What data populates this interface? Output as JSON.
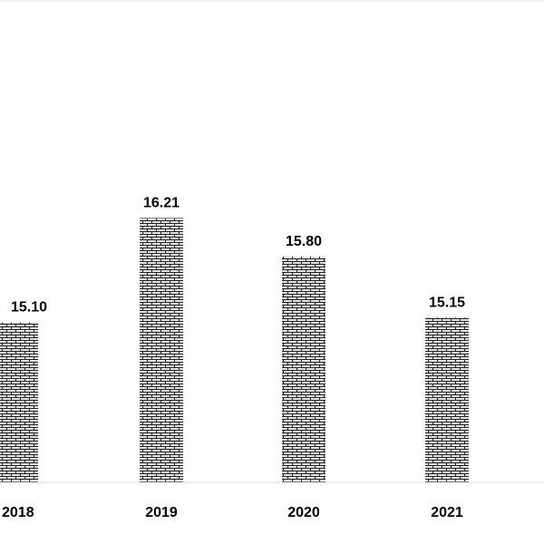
{
  "chart_data": {
    "type": "bar",
    "categories": [
      "2018",
      "2019",
      "2020",
      "2021"
    ],
    "values": [
      15.1,
      16.21,
      15.8,
      15.15
    ],
    "data_labels": [
      "15.10",
      "16.21",
      "15.80",
      "15.15"
    ],
    "title": "",
    "xlabel": "",
    "ylabel": "",
    "ylim": [
      13.4,
      16.6
    ],
    "grid": false,
    "legend": "none",
    "bar_pattern": "brick",
    "colors": {
      "bar_fill": "#cfcfcf",
      "bar_pattern": "#222222",
      "axis": "#dddddd",
      "text": "#000000",
      "background": "#ffffff"
    }
  }
}
